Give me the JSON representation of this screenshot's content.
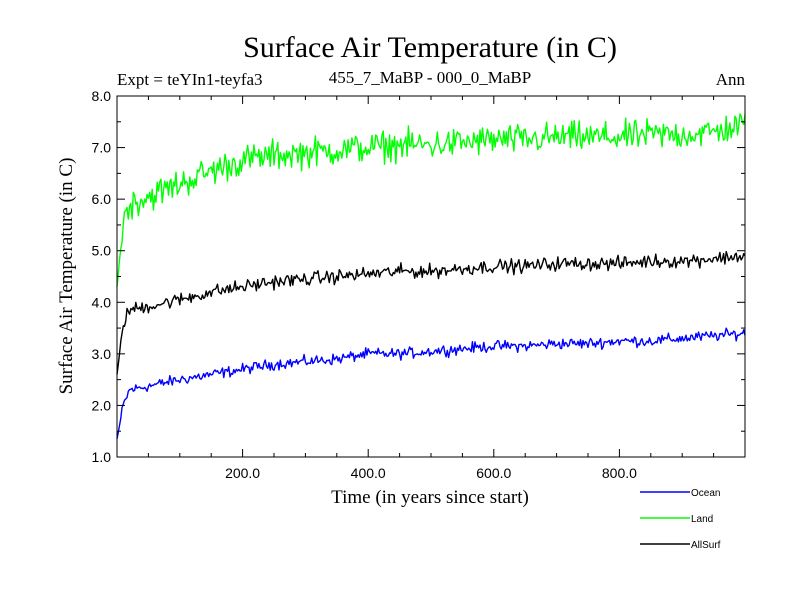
{
  "chart_data": {
    "type": "line",
    "title": "Surface Air Temperature (in C)",
    "subtitle_left": "Expt = teYIn1-teyfa3",
    "subtitle_center": "455_7_MaBP - 000_0_MaBP",
    "subtitle_right": "Ann",
    "xlabel": "Time (in years since start)",
    "ylabel": "Surface Air Temperature (in C)",
    "xlim": [
      0,
      1000
    ],
    "ylim": [
      1.0,
      8.0
    ],
    "x_ticks": [
      200,
      400,
      600,
      800
    ],
    "x_tick_labels": [
      "200.0",
      "400.0",
      "600.0",
      "800.0"
    ],
    "y_ticks": [
      1,
      2,
      3,
      4,
      5,
      6,
      7,
      8
    ],
    "y_tick_labels": [
      "1.0",
      "2.0",
      "3.0",
      "4.0",
      "5.0",
      "6.0",
      "7.0",
      "8.0"
    ],
    "legend_position": "bottom-right, below plot",
    "series": [
      {
        "name": "Ocean",
        "color": "#0000ff",
        "x": [
          0,
          10,
          20,
          40,
          60,
          80,
          100,
          150,
          200,
          250,
          300,
          350,
          400,
          450,
          500,
          550,
          600,
          650,
          700,
          750,
          800,
          850,
          900,
          950,
          1000
        ],
        "values": [
          1.35,
          2.0,
          2.3,
          2.35,
          2.4,
          2.45,
          2.5,
          2.6,
          2.7,
          2.8,
          2.85,
          2.9,
          3.0,
          3.0,
          3.05,
          3.1,
          3.15,
          3.15,
          3.2,
          3.2,
          3.25,
          3.25,
          3.3,
          3.35,
          3.4
        ],
        "noise": 0.08
      },
      {
        "name": "Land",
        "color": "#00ff00",
        "x": [
          0,
          10,
          20,
          40,
          60,
          80,
          100,
          150,
          200,
          250,
          300,
          350,
          400,
          450,
          500,
          550,
          600,
          650,
          700,
          750,
          800,
          850,
          900,
          950,
          1000
        ],
        "values": [
          4.3,
          5.6,
          5.9,
          6.0,
          6.1,
          6.2,
          6.3,
          6.55,
          6.75,
          6.85,
          6.9,
          6.95,
          7.0,
          7.05,
          7.05,
          7.1,
          7.15,
          7.15,
          7.2,
          7.2,
          7.2,
          7.25,
          7.25,
          7.3,
          7.45
        ],
        "noise": 0.22
      },
      {
        "name": "AllSurf",
        "color": "#000000",
        "x": [
          0,
          10,
          20,
          40,
          60,
          80,
          100,
          150,
          200,
          250,
          300,
          350,
          400,
          450,
          500,
          550,
          600,
          650,
          700,
          750,
          800,
          850,
          900,
          950,
          1000
        ],
        "values": [
          2.6,
          3.6,
          3.85,
          3.9,
          3.95,
          4.0,
          4.05,
          4.2,
          4.3,
          4.4,
          4.45,
          4.5,
          4.55,
          4.6,
          4.6,
          4.65,
          4.7,
          4.7,
          4.75,
          4.75,
          4.75,
          4.8,
          4.8,
          4.85,
          4.9
        ],
        "noise": 0.1
      }
    ]
  }
}
